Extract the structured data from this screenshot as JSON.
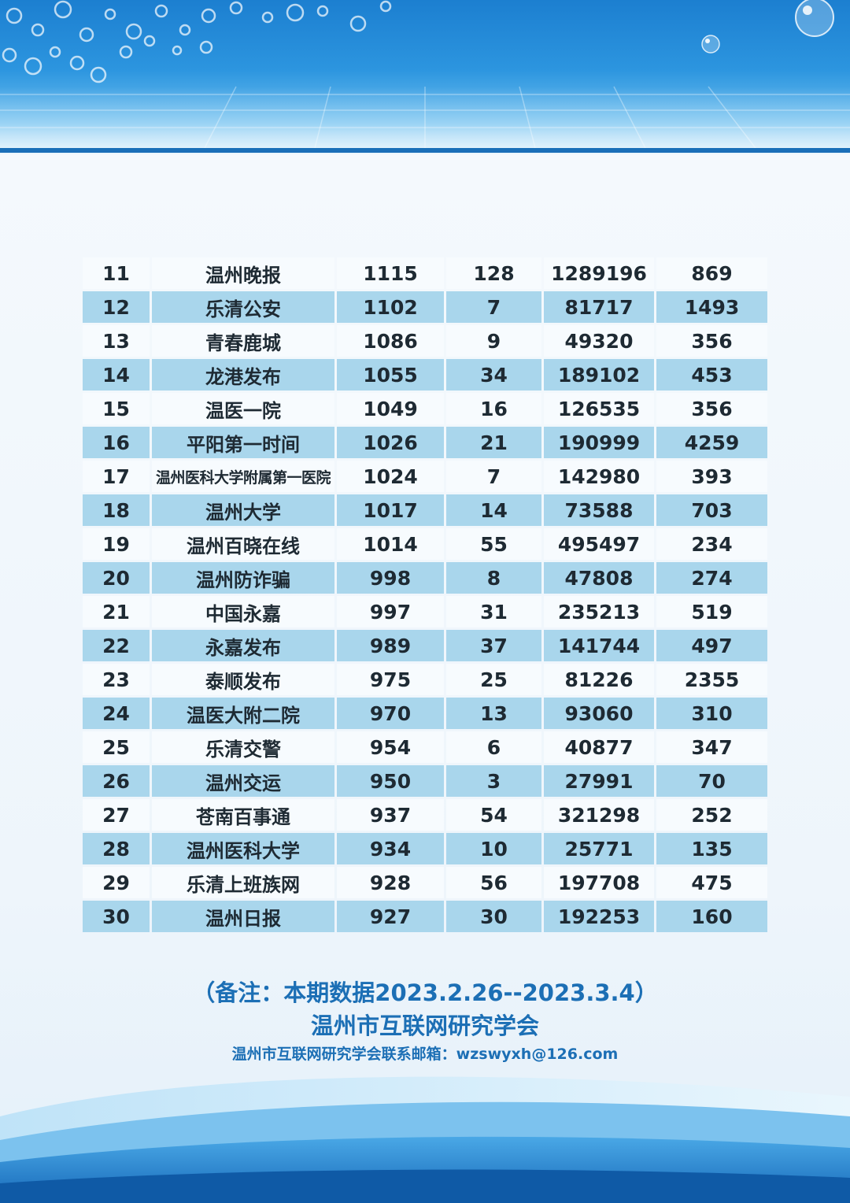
{
  "rows": [
    {
      "rank": "11",
      "name": "温州晚报",
      "c1": "1115",
      "c2": "128",
      "c3": "1289196",
      "c4": "869"
    },
    {
      "rank": "12",
      "name": "乐清公安",
      "c1": "1102",
      "c2": "7",
      "c3": "81717",
      "c4": "1493"
    },
    {
      "rank": "13",
      "name": "青春鹿城",
      "c1": "1086",
      "c2": "9",
      "c3": "49320",
      "c4": "356"
    },
    {
      "rank": "14",
      "name": "龙港发布",
      "c1": "1055",
      "c2": "34",
      "c3": "189102",
      "c4": "453"
    },
    {
      "rank": "15",
      "name": "温医一院",
      "c1": "1049",
      "c2": "16",
      "c3": "126535",
      "c4": "356"
    },
    {
      "rank": "16",
      "name": "平阳第一时间",
      "c1": "1026",
      "c2": "21",
      "c3": "190999",
      "c4": "4259"
    },
    {
      "rank": "17",
      "name": "温州医科大学附属第一医院",
      "c1": "1024",
      "c2": "7",
      "c3": "142980",
      "c4": "393"
    },
    {
      "rank": "18",
      "name": "温州大学",
      "c1": "1017",
      "c2": "14",
      "c3": "73588",
      "c4": "703"
    },
    {
      "rank": "19",
      "name": "温州百晓在线",
      "c1": "1014",
      "c2": "55",
      "c3": "495497",
      "c4": "234"
    },
    {
      "rank": "20",
      "name": "温州防诈骗",
      "c1": "998",
      "c2": "8",
      "c3": "47808",
      "c4": "274"
    },
    {
      "rank": "21",
      "name": "中国永嘉",
      "c1": "997",
      "c2": "31",
      "c3": "235213",
      "c4": "519"
    },
    {
      "rank": "22",
      "name": "永嘉发布",
      "c1": "989",
      "c2": "37",
      "c3": "141744",
      "c4": "497"
    },
    {
      "rank": "23",
      "name": "泰顺发布",
      "c1": "975",
      "c2": "25",
      "c3": "81226",
      "c4": "2355"
    },
    {
      "rank": "24",
      "name": "温医大附二院",
      "c1": "970",
      "c2": "13",
      "c3": "93060",
      "c4": "310"
    },
    {
      "rank": "25",
      "name": "乐清交警",
      "c1": "954",
      "c2": "6",
      "c3": "40877",
      "c4": "347"
    },
    {
      "rank": "26",
      "name": "温州交运",
      "c1": "950",
      "c2": "3",
      "c3": "27991",
      "c4": "70"
    },
    {
      "rank": "27",
      "name": "苍南百事通",
      "c1": "937",
      "c2": "54",
      "c3": "321298",
      "c4": "252"
    },
    {
      "rank": "28",
      "name": "温州医科大学",
      "c1": "934",
      "c2": "10",
      "c3": "25771",
      "c4": "135"
    },
    {
      "rank": "29",
      "name": "乐清上班族网",
      "c1": "928",
      "c2": "56",
      "c3": "197708",
      "c4": "475"
    },
    {
      "rank": "30",
      "name": "温州日报",
      "c1": "927",
      "c2": "30",
      "c3": "192253",
      "c4": "160"
    }
  ],
  "footer": {
    "period_note": "（备注：本期数据2023.2.26--2023.3.4）",
    "organization": "温州市互联网研究学会",
    "email_line": "温州市互联网研究学会联系邮箱：wzswyxh@126.com"
  },
  "colors": {
    "header_blue": "#1c7fd0",
    "row_stripe": "#a9d6ec",
    "row_light": "#f7fbfe",
    "footer_text": "#1c6fb5"
  }
}
